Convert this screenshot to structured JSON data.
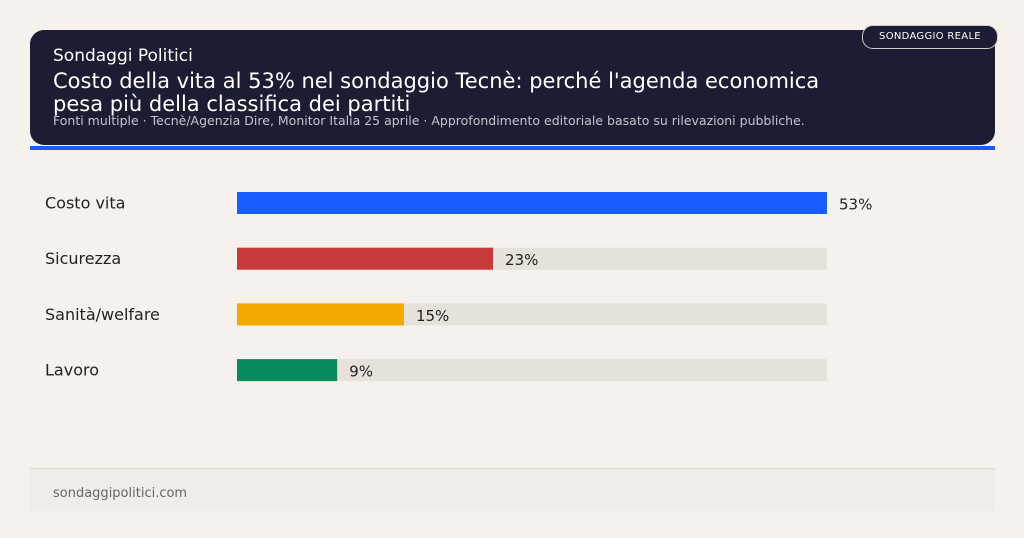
{
  "header": {
    "kicker": "Sondaggi Politici",
    "title": "Costo della vita al 53% nel sondaggio Tecnè: perché l'agenda economica pesa più della classifica dei partiti",
    "source": "Fonti multiple · Tecnè/Agenzia Dire, Monitor Italia 25 aprile · Approfondimento editoriale basato su rilevazioni pubbliche.",
    "badge": "SONDAGGIO REALE"
  },
  "chart_data": {
    "type": "hbar",
    "categories": [
      "Costo vita",
      "Sicurezza",
      "Sanità/welfare",
      "Lavoro"
    ],
    "values": [
      53,
      23,
      15,
      9
    ],
    "value_labels": [
      "53%",
      "23%",
      "15%",
      "9%"
    ],
    "colors": [
      "#1a5cff",
      "#c83a3a",
      "#f2a900",
      "#0a8a5f"
    ],
    "xlim": [
      0,
      53
    ]
  },
  "footer": {
    "site": "sondaggipolitici.com"
  }
}
